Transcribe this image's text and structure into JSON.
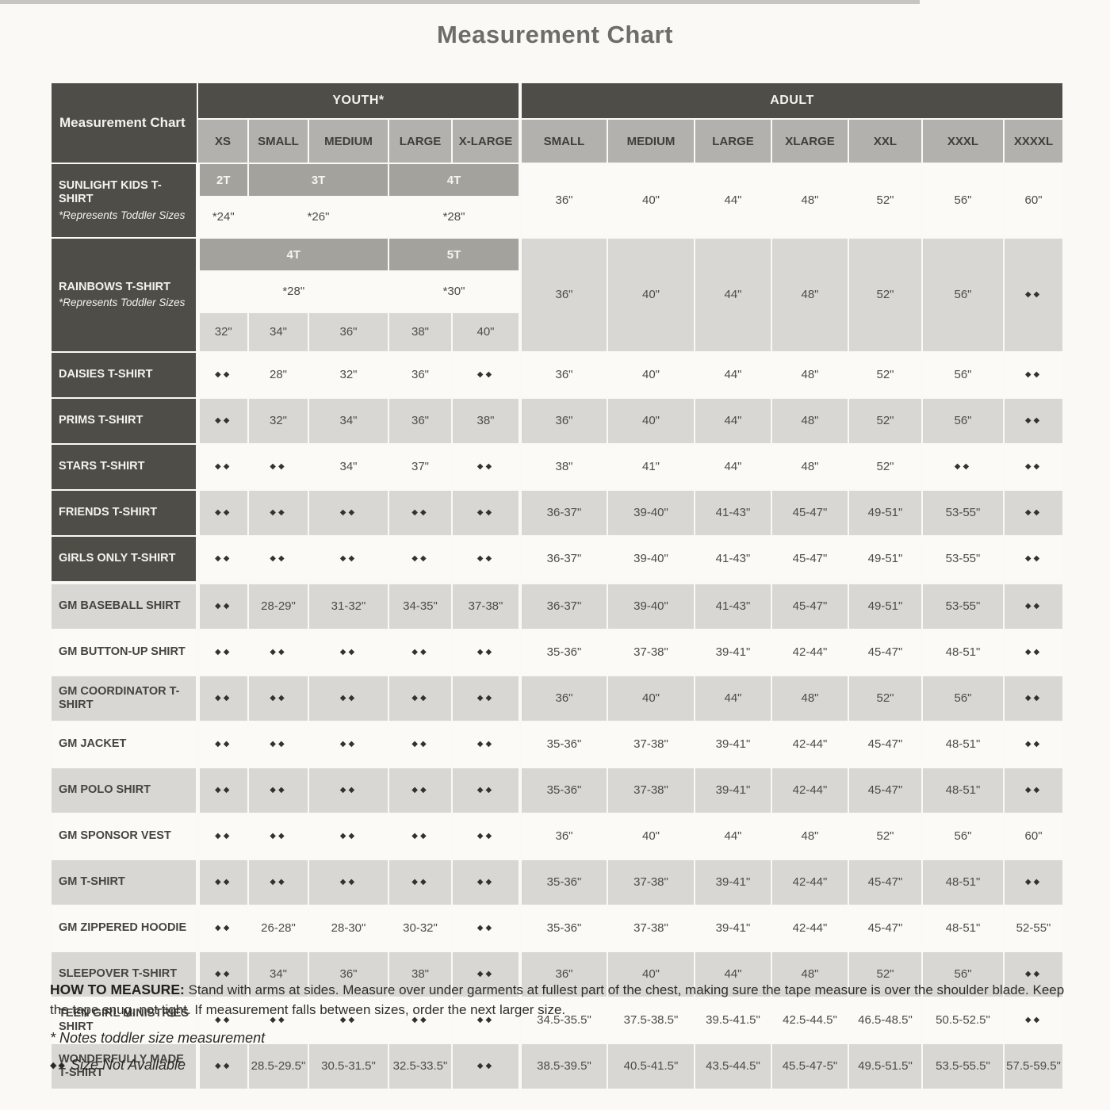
{
  "title": "Measurement Chart",
  "colors": {
    "header_dark": "#4e4d48",
    "header_gray": "#b3b1ad",
    "toddler_gray": "#a3a29d",
    "band_gray": "#d9d7d3",
    "band_white": "#fbfaf7"
  },
  "table": {
    "corner_label": "Measurement Chart",
    "group_headers": {
      "youth": "YOUTH*",
      "adult": "ADULT"
    },
    "youth_columns": [
      "XS",
      "SMALL",
      "MEDIUM",
      "LARGE",
      "X-LARGE"
    ],
    "adult_columns": [
      "SMALL",
      "MEDIUM",
      "LARGE",
      "XLARGE",
      "XXL",
      "XXXL",
      "XXXXL"
    ],
    "na_symbol": "◆◆",
    "special_rows": [
      {
        "label": "SUNLIGHT KIDS T-SHIRT",
        "note": "*Represents Toddler Sizes",
        "toddler_sizes": [
          "2T",
          "3T",
          "4T"
        ],
        "toddler_spans": [
          1,
          2,
          2
        ],
        "toddler_measurements": [
          "*24\"",
          "*26\"",
          "*28\""
        ],
        "adult": [
          "36\"",
          "40\"",
          "44\"",
          "48\"",
          "52\"",
          "56\"",
          "60\""
        ],
        "band": "white"
      },
      {
        "label": "RAINBOWS T-SHIRT",
        "note": "*Represents Toddler Sizes",
        "toddler_sizes": [
          "4T",
          "5T"
        ],
        "toddler_spans": [
          3,
          2
        ],
        "toddler_measurements": [
          "*28\"",
          "*30\""
        ],
        "youth_sizes": [
          "32\"",
          "34\"",
          "36\"",
          "38\"",
          "40\""
        ],
        "adult": [
          "36\"",
          "40\"",
          "44\"",
          "48\"",
          "52\"",
          "56\"",
          "◆◆"
        ],
        "band": "gray"
      }
    ],
    "rows": [
      {
        "label": "DAISIES T-SHIRT",
        "youth": [
          "◆◆",
          "28\"",
          "32\"",
          "36\"",
          "◆◆"
        ],
        "adult": [
          "36\"",
          "40\"",
          "44\"",
          "48\"",
          "52\"",
          "56\"",
          "◆◆"
        ]
      },
      {
        "label": "PRIMS T-SHIRT",
        "youth": [
          "◆◆",
          "32\"",
          "34\"",
          "36\"",
          "38\""
        ],
        "adult": [
          "36\"",
          "40\"",
          "44\"",
          "48\"",
          "52\"",
          "56\"",
          "◆◆"
        ]
      },
      {
        "label": "STARS T-SHIRT",
        "youth": [
          "◆◆",
          "◆◆",
          "34\"",
          "37\"",
          "◆◆"
        ],
        "adult": [
          "38\"",
          "41\"",
          "44\"",
          "48\"",
          "52\"",
          "◆◆",
          "◆◆"
        ]
      },
      {
        "label": "FRIENDS T-SHIRT",
        "youth": [
          "◆◆",
          "◆◆",
          "◆◆",
          "◆◆",
          "◆◆"
        ],
        "adult": [
          "36-37\"",
          "39-40\"",
          "41-43\"",
          "45-47\"",
          "49-51\"",
          "53-55\"",
          "◆◆"
        ]
      },
      {
        "label": "GIRLS ONLY T-SHIRT",
        "youth": [
          "◆◆",
          "◆◆",
          "◆◆",
          "◆◆",
          "◆◆"
        ],
        "adult": [
          "36-37\"",
          "39-40\"",
          "41-43\"",
          "45-47\"",
          "49-51\"",
          "53-55\"",
          "◆◆"
        ]
      },
      {
        "label": "GM BASEBALL SHIRT",
        "youth": [
          "◆◆",
          "28-29\"",
          "31-32\"",
          "34-35\"",
          "37-38\""
        ],
        "adult": [
          "36-37\"",
          "39-40\"",
          "41-43\"",
          "45-47\"",
          "49-51\"",
          "53-55\"",
          "◆◆"
        ]
      },
      {
        "label": "GM BUTTON-UP SHIRT",
        "youth": [
          "◆◆",
          "◆◆",
          "◆◆",
          "◆◆",
          "◆◆"
        ],
        "adult": [
          "35-36\"",
          "37-38\"",
          "39-41\"",
          "42-44\"",
          "45-47\"",
          "48-51\"",
          "◆◆"
        ]
      },
      {
        "label": "GM COORDINATOR T-SHIRT",
        "youth": [
          "◆◆",
          "◆◆",
          "◆◆",
          "◆◆",
          "◆◆"
        ],
        "adult": [
          "36\"",
          "40\"",
          "44\"",
          "48\"",
          "52\"",
          "56\"",
          "◆◆"
        ]
      },
      {
        "label": "GM JACKET",
        "youth": [
          "◆◆",
          "◆◆",
          "◆◆",
          "◆◆",
          "◆◆"
        ],
        "adult": [
          "35-36\"",
          "37-38\"",
          "39-41\"",
          "42-44\"",
          "45-47\"",
          "48-51\"",
          "◆◆"
        ]
      },
      {
        "label": "GM POLO SHIRT",
        "youth": [
          "◆◆",
          "◆◆",
          "◆◆",
          "◆◆",
          "◆◆"
        ],
        "adult": [
          "35-36\"",
          "37-38\"",
          "39-41\"",
          "42-44\"",
          "45-47\"",
          "48-51\"",
          "◆◆"
        ]
      },
      {
        "label": "GM SPONSOR VEST",
        "youth": [
          "◆◆",
          "◆◆",
          "◆◆",
          "◆◆",
          "◆◆"
        ],
        "adult": [
          "36\"",
          "40\"",
          "44\"",
          "48\"",
          "52\"",
          "56\"",
          "60\""
        ]
      },
      {
        "label": "GM T-SHIRT",
        "youth": [
          "◆◆",
          "◆◆",
          "◆◆",
          "◆◆",
          "◆◆"
        ],
        "adult": [
          "35-36\"",
          "37-38\"",
          "39-41\"",
          "42-44\"",
          "45-47\"",
          "48-51\"",
          "◆◆"
        ]
      },
      {
        "label": "GM ZIPPERED HOODIE",
        "youth": [
          "◆◆",
          "26-28\"",
          "28-30\"",
          "30-32\"",
          "◆◆"
        ],
        "adult": [
          "35-36\"",
          "37-38\"",
          "39-41\"",
          "42-44\"",
          "45-47\"",
          "48-51\"",
          "52-55\""
        ]
      },
      {
        "label": "SLEEPOVER T-SHIRT",
        "youth": [
          "◆◆",
          "34\"",
          "36\"",
          "38\"",
          "◆◆"
        ],
        "adult": [
          "36\"",
          "40\"",
          "44\"",
          "48\"",
          "52\"",
          "56\"",
          "◆◆"
        ]
      },
      {
        "label": "TEEN GIRL MINISTRIES SHIRT",
        "youth": [
          "◆◆",
          "◆◆",
          "◆◆",
          "◆◆",
          "◆◆"
        ],
        "adult": [
          "34.5-35.5\"",
          "37.5-38.5\"",
          "39.5-41.5\"",
          "42.5-44.5\"",
          "46.5-48.5\"",
          "50.5-52.5\"",
          "◆◆"
        ]
      },
      {
        "label": "WONDERFULLY MADE T-SHIRT",
        "youth": [
          "◆◆",
          "28.5-29.5\"",
          "30.5-31.5\"",
          "32.5-33.5\"",
          "◆◆"
        ],
        "adult": [
          "38.5-39.5\"",
          "40.5-41.5\"",
          "43.5-44.5\"",
          "45.5-47-5\"",
          "49.5-51.5\"",
          "53.5-55.5\"",
          "57.5-59.5\""
        ]
      }
    ]
  },
  "footer": {
    "howto_label": "HOW TO MEASURE:",
    "howto_text": "Stand with arms at sides. Measure over under garments at fullest part of the chest, making sure the tape measure is over the shoulder blade. Keep the tape snug, not tight. If measurement falls between sizes, order the next larger size.",
    "note_toddler": "* Notes toddler size measurement",
    "na_note_symbol": "◆◆",
    "na_note_text": "Size Not Available"
  }
}
